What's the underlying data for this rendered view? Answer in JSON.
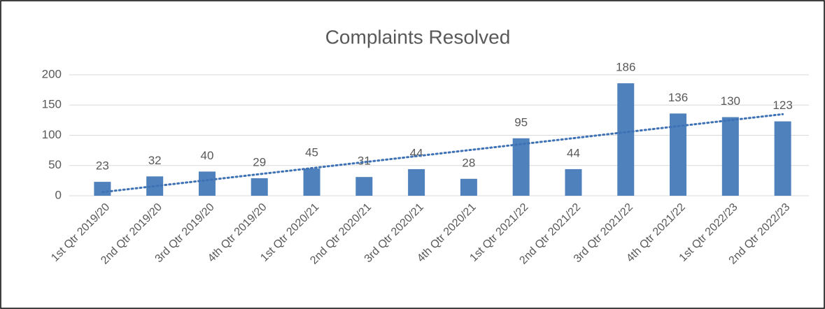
{
  "chart_data": {
    "type": "bar",
    "title": "Complaints Resolved",
    "categories": [
      "1st Qtr 2019/20",
      "2nd Qtr 2019/20",
      "3rd Qtr 2019/20",
      "4th Qtr 2019/20",
      "1st Qtr 2020/21",
      "2nd Qtr 2020/21",
      "3rd Qtr 2020/21",
      "4th Qtr 2020/21",
      "1st Qtr 2021/22",
      "2nd Qtr 2021/22",
      "3rd Qtr 2021/22",
      "4th Qtr 2021/22",
      "1st Qtr 2022/23",
      "2nd Qtr 2022/23"
    ],
    "values": [
      23,
      32,
      40,
      29,
      45,
      31,
      44,
      28,
      95,
      44,
      186,
      136,
      130,
      123
    ],
    "color": "#4f81bd",
    "ylim": [
      0,
      200
    ],
    "yticks": [
      0,
      50,
      100,
      150,
      200
    ],
    "grid": true,
    "trendline": "linear"
  }
}
